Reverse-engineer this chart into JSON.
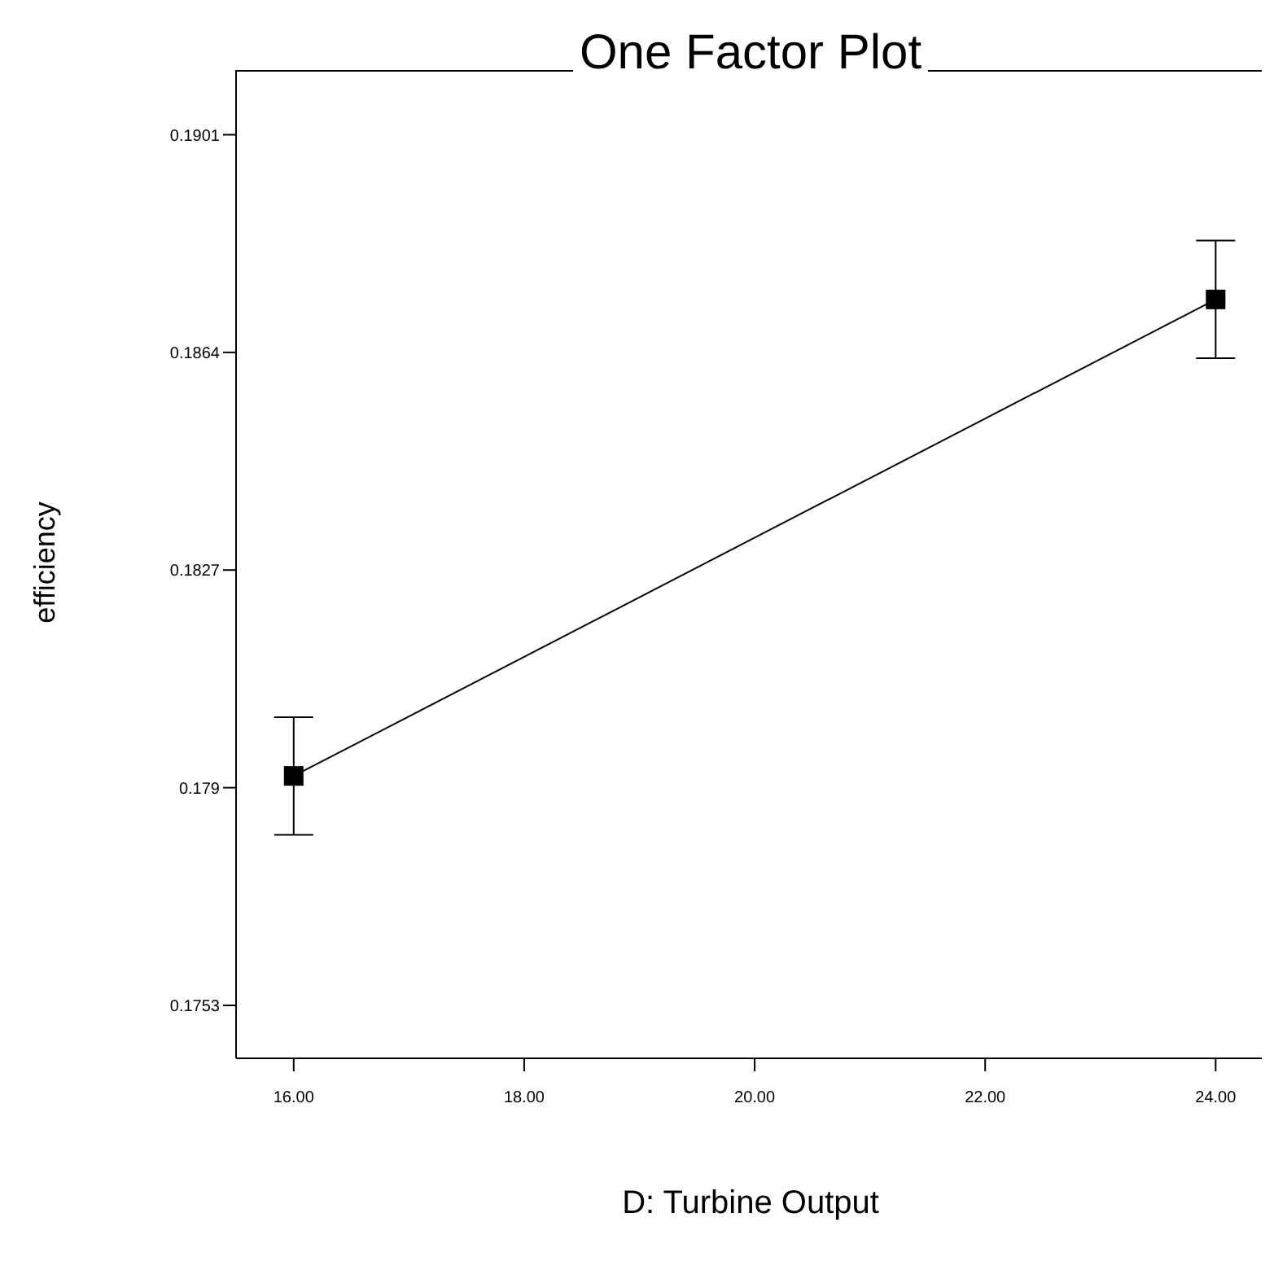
{
  "chart_data": {
    "type": "line",
    "title": "One Factor Plot",
    "xlabel": "D: Turbine Output",
    "ylabel": "efficiency",
    "x": [
      16,
      24
    ],
    "values": [
      0.1792,
      0.1873
    ],
    "errors": [
      [
        0.1782,
        0.1802
      ],
      [
        0.1863,
        0.1883
      ]
    ],
    "color": "#000000",
    "marker": "square",
    "line_style": "solid",
    "grid": false,
    "legend": false,
    "xlim": [
      15.5,
      24.4
    ],
    "xticks": [
      {
        "value": 16,
        "label": "16.00"
      },
      {
        "value": 18,
        "label": "18.00"
      },
      {
        "value": 20,
        "label": "20.00"
      },
      {
        "value": 22,
        "label": "22.00"
      },
      {
        "value": 24,
        "label": "24.00"
      }
    ],
    "ylim": [
      0.1744,
      0.1912
    ],
    "yticks": [
      0.1753,
      0.179,
      0.1827,
      0.1864,
      0.1901
    ]
  }
}
